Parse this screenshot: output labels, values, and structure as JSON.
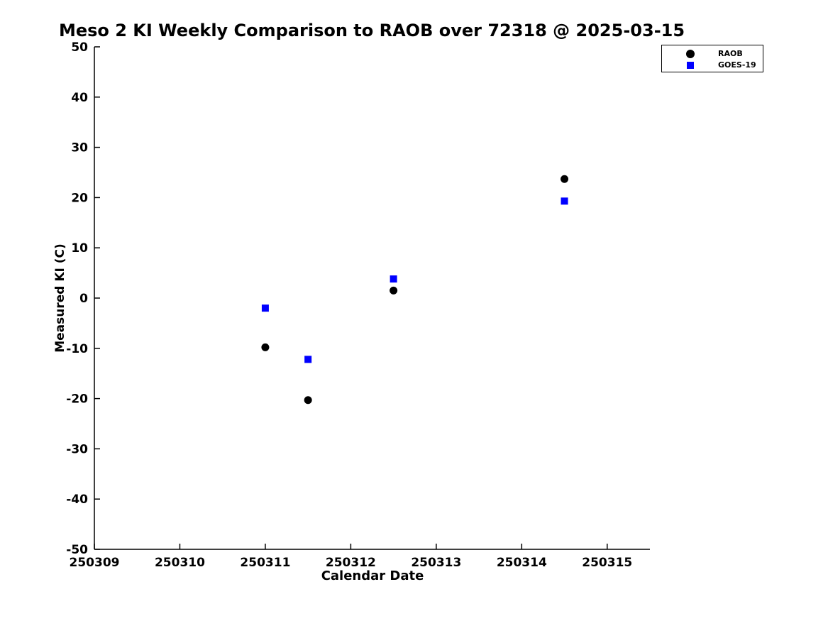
{
  "chart_data": {
    "type": "scatter",
    "title": "Meso 2 KI Weekly Comparison to RAOB over 72318 @ 2025-03-15",
    "xlabel": "Calendar Date",
    "ylabel": "Measured KI (C)",
    "xlim": [
      250309,
      250315.5
    ],
    "ylim": [
      -50,
      50
    ],
    "x_ticks": [
      250309,
      250310,
      250311,
      250312,
      250313,
      250314,
      250315
    ],
    "y_ticks": [
      50,
      40,
      30,
      20,
      10,
      0,
      -10,
      -20,
      -30,
      -40,
      -50
    ],
    "grid": false,
    "legend_position": "top-right",
    "background_color": "#ffffff",
    "axis_color": "#000000",
    "series": [
      {
        "name": "RAOB",
        "marker": "circle",
        "color": "#000000",
        "points": [
          [
            250311,
            -9.8
          ],
          [
            250311.5,
            -20.3
          ],
          [
            250312.5,
            1.5
          ],
          [
            250314.5,
            23.7
          ]
        ]
      },
      {
        "name": "GOES-19",
        "marker": "square",
        "color": "#0000ff",
        "points": [
          [
            250311,
            -2.0
          ],
          [
            250311.5,
            -12.2
          ],
          [
            250312.5,
            3.8
          ],
          [
            250314.5,
            19.3
          ]
        ]
      }
    ]
  }
}
